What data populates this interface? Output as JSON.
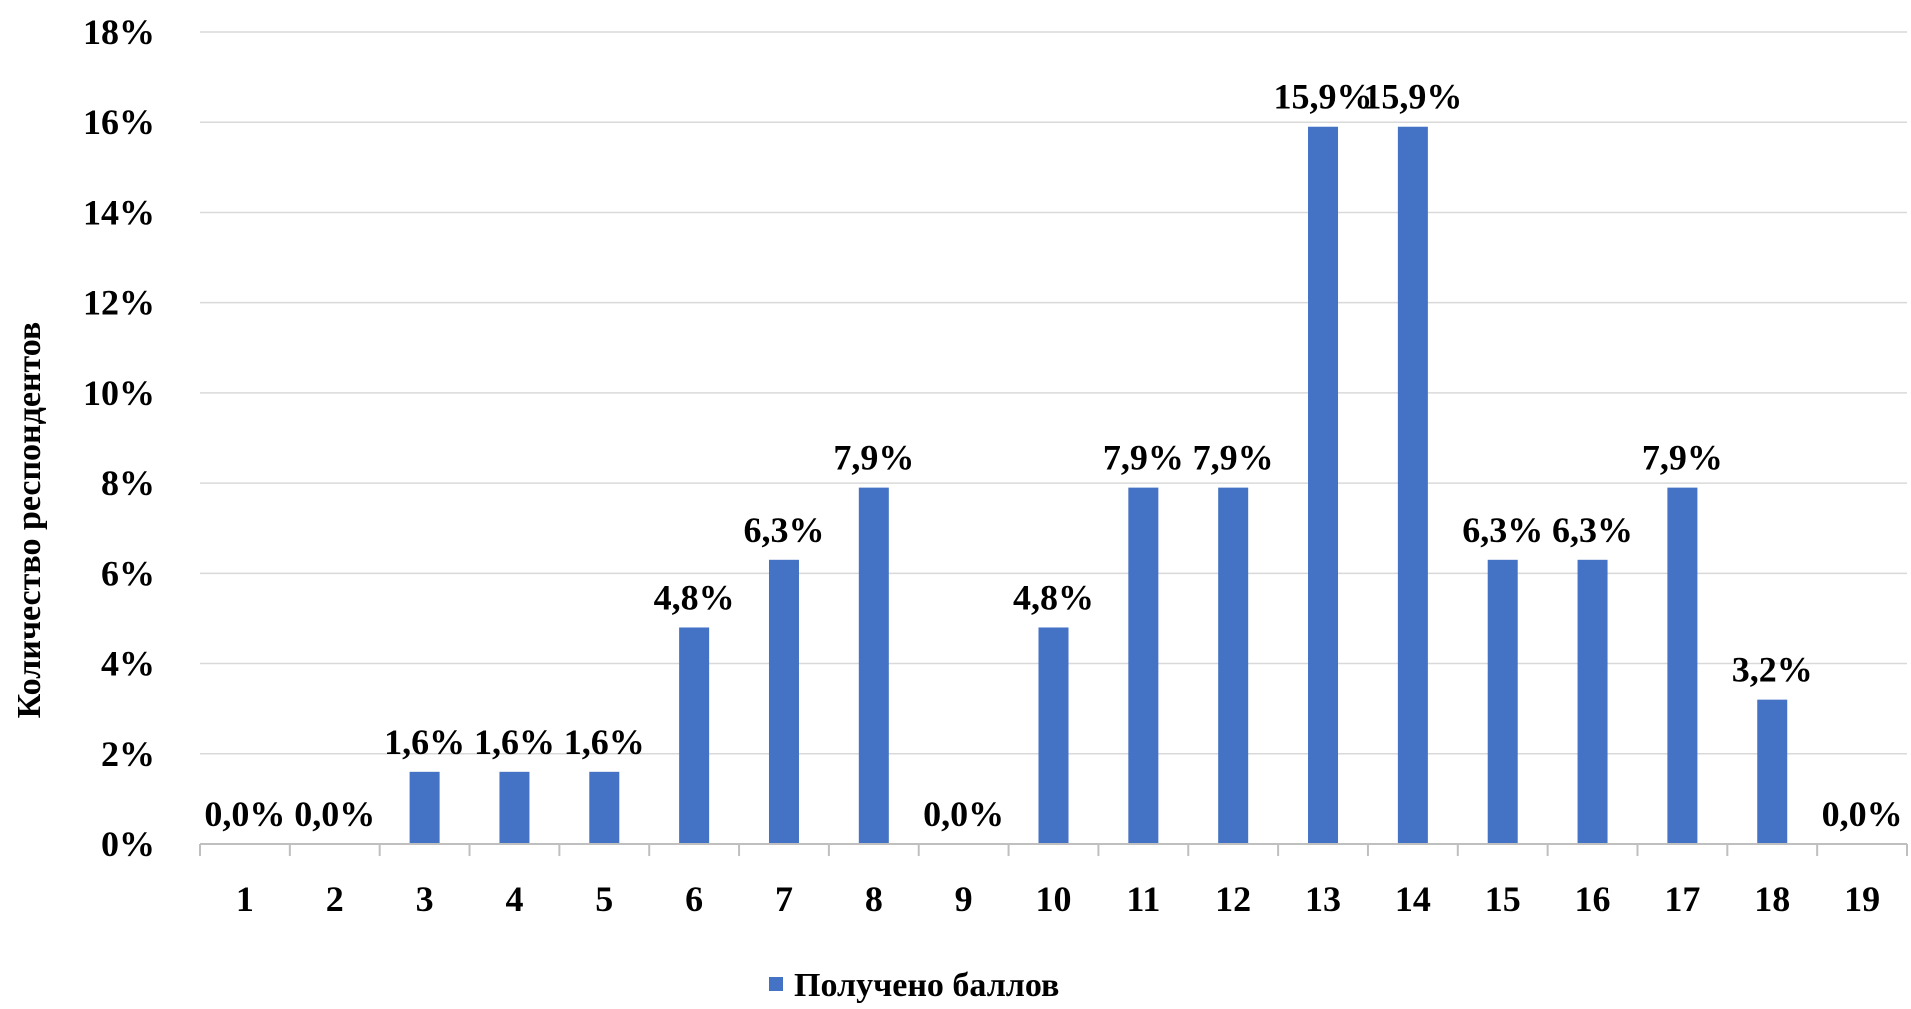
{
  "chart_data": {
    "type": "bar",
    "title": "",
    "xlabel": "",
    "ylabel": "Количество респондентов",
    "categories": [
      "1",
      "2",
      "3",
      "4",
      "5",
      "6",
      "7",
      "8",
      "9",
      "10",
      "11",
      "12",
      "13",
      "14",
      "15",
      "16",
      "17",
      "18",
      "19"
    ],
    "series": [
      {
        "name": "Получено баллов",
        "values": [
          0.0,
          0.0,
          1.6,
          1.6,
          1.6,
          4.8,
          6.3,
          7.9,
          0.0,
          4.8,
          7.9,
          7.9,
          15.9,
          15.9,
          6.3,
          6.3,
          7.9,
          3.2,
          0.0
        ],
        "labels": [
          "0,0%",
          "0,0%",
          "1,6%",
          "1,6%",
          "1,6%",
          "4,8%",
          "6,3%",
          "7,9%",
          "0,0%",
          "4,8%",
          "7,9%",
          "7,9%",
          "15,9%",
          "15,9%",
          "6,3%",
          "6,3%",
          "7,9%",
          "3,2%",
          "0,0%"
        ]
      }
    ],
    "ylim": [
      0,
      18
    ],
    "yticks": [
      0,
      2,
      4,
      6,
      8,
      10,
      12,
      14,
      16,
      18
    ],
    "ytick_labels": [
      "0%",
      "2%",
      "4%",
      "6%",
      "8%",
      "10%",
      "12%",
      "14%",
      "16%",
      "18%"
    ],
    "grid": true,
    "legend_position": "bottom"
  },
  "colors": {
    "bar": "#4472C4",
    "grid": "#D9D9D9",
    "axis": "#BFBFBF",
    "text": "#000000"
  }
}
